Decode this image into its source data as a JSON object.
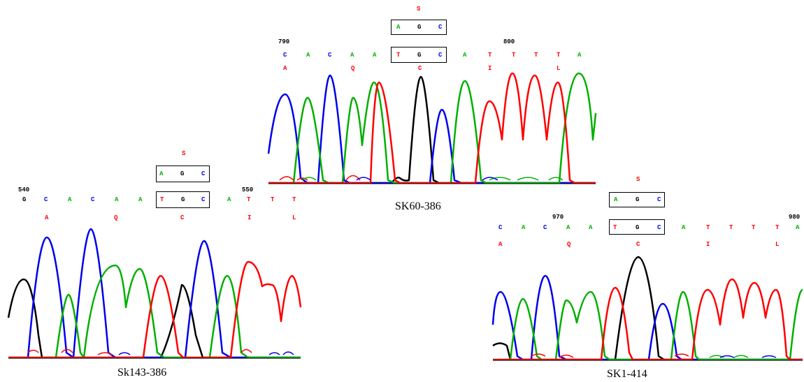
{
  "colors": {
    "A": "#00b000",
    "C": "#0000ee",
    "G": "#000000",
    "T": "#ff0000",
    "aa": "#ff0000",
    "sub": "#ff0000",
    "pos": "#000000"
  },
  "panels": [
    {
      "id": "sk143",
      "caption": "Sk143-386",
      "substitution": "S",
      "mutant_codon": [
        "A",
        "G",
        "C"
      ],
      "bases": [
        "G",
        "C",
        "A",
        "C",
        "A",
        "A",
        "T",
        "G",
        "C",
        "A",
        "T",
        "T",
        "T"
      ],
      "amino_acids": [
        "A",
        "Q",
        "C",
        "I",
        "L"
      ],
      "positions": [
        "540",
        "550"
      ]
    },
    {
      "id": "sk60",
      "caption": "SK60-386",
      "substitution": "S",
      "mutant_codon": [
        "A",
        "G",
        "C"
      ],
      "bases": [
        "C",
        "A",
        "C",
        "A",
        "A",
        "T",
        "G",
        "C",
        "A",
        "T",
        "T",
        "T",
        "T",
        "A"
      ],
      "amino_acids": [
        "A",
        "Q",
        "C",
        "I",
        "L"
      ],
      "positions": [
        "790",
        "800"
      ]
    },
    {
      "id": "sk1",
      "caption": "SK1-414",
      "substitution": "S",
      "mutant_codon": [
        "A",
        "G",
        "C"
      ],
      "bases": [
        "C",
        "A",
        "C",
        "A",
        "A",
        "T",
        "G",
        "C",
        "A",
        "T",
        "T",
        "T",
        "T",
        "A"
      ],
      "amino_acids": [
        "A",
        "Q",
        "C",
        "I",
        "L"
      ],
      "positions": [
        "970",
        "980"
      ]
    }
  ]
}
